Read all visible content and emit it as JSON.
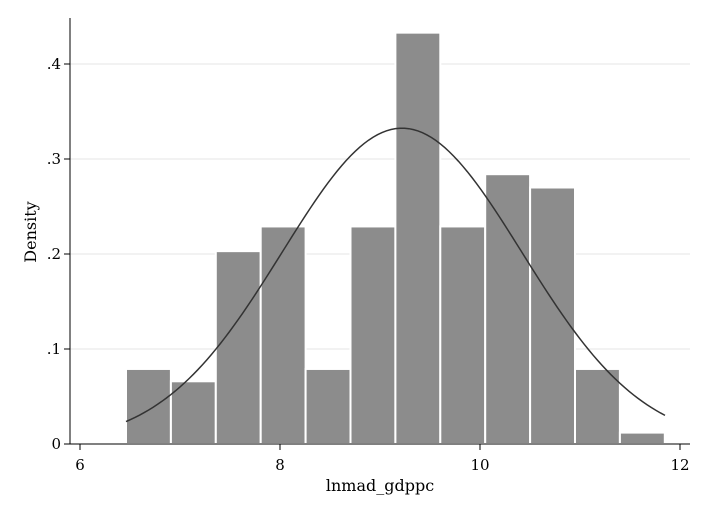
{
  "chart_data": {
    "type": "bar",
    "subtype": "histogram",
    "title": "",
    "xlabel": "lnmad_gdppc",
    "ylabel": "Density",
    "xlim": [
      6,
      12
    ],
    "ylim": [
      0,
      0.45
    ],
    "x_ticks": [
      6,
      8,
      10,
      12
    ],
    "x_tick_labels": [
      "6",
      "8",
      "10",
      "12"
    ],
    "y_ticks": [
      0,
      0.1,
      0.2,
      0.3,
      0.4
    ],
    "y_tick_labels": [
      "0",
      ".1",
      ".2",
      ".3",
      ".4"
    ],
    "grid": "horizontal",
    "legend": "none",
    "bins": {
      "start": 6.46,
      "width": 0.449,
      "density": [
        0.079,
        0.066,
        0.203,
        0.229,
        0.079,
        0.229,
        0.433,
        0.229,
        0.284,
        0.27,
        0.079,
        0.012
      ]
    },
    "normal_curve": {
      "mean": 9.22,
      "sd": 1.2,
      "x_range": [
        6.46,
        11.85
      ]
    },
    "colors": {
      "bar_fill": "#8c8c8c",
      "bar_edge": "#ffffff",
      "curve": "#333333",
      "grid": "#e6e6e6",
      "axis": "#000000"
    }
  }
}
